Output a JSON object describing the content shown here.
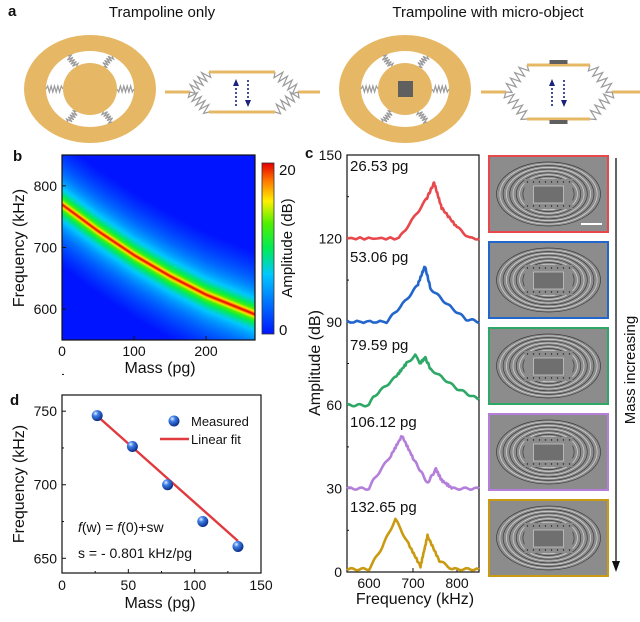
{
  "panel_labels": {
    "a": "a",
    "b": "b",
    "c": "c",
    "d": "d"
  },
  "panel_a": {
    "title_left": "Trampoline only",
    "title_right": "Trampoline with micro-object",
    "colors": {
      "frame": "#E6B865",
      "spring": "#9a9a9a",
      "object": "#5f5f5f",
      "arrow": "#1a237e"
    }
  },
  "chart_data": [
    {
      "panel": "b",
      "type": "heatmap",
      "xlabel": "Mass (pg)",
      "ylabel": "Frequency (kHz)",
      "xlim": [
        0,
        268
      ],
      "ylim": [
        550,
        850
      ],
      "xticks": [
        "0",
        "100",
        "200"
      ],
      "yticks": [
        "600",
        "700",
        "800"
      ],
      "colorbar": {
        "label": "Amplitude (dB)",
        "range": [
          0,
          20
        ],
        "ticks": [
          "0",
          "20"
        ],
        "colormap": "jet"
      },
      "ridge": {
        "mass": [
          0,
          50,
          100,
          150,
          200,
          268
        ],
        "frequency": [
          770,
          727,
          688,
          654,
          624,
          592
        ]
      }
    },
    {
      "panel": "c",
      "type": "line",
      "xlabel": "Frequency (kHz)",
      "ylabel": "Amplitude (dB)",
      "xlim": [
        550,
        850
      ],
      "ylim": [
        0,
        150
      ],
      "xticks": [
        "600",
        "700",
        "800"
      ],
      "yticks": [
        "0",
        "30",
        "60",
        "90",
        "120",
        "150"
      ],
      "series": [
        {
          "name": "26.53 pg",
          "color": "#E8474C",
          "x": [
            550,
            668,
            700,
            730,
            748,
            765,
            800,
            830,
            850
          ],
          "y": [
            120,
            120,
            127,
            134,
            140,
            131,
            124,
            120,
            120
          ]
        },
        {
          "name": "53.06 pg",
          "color": "#2266CC",
          "x": [
            550,
            640,
            680,
            710,
            727,
            740,
            780,
            820,
            850
          ],
          "y": [
            90,
            90,
            97,
            103,
            110,
            102,
            96,
            91,
            90
          ]
        },
        {
          "name": "79.59 pg",
          "color": "#2EA866",
          "x": [
            550,
            600,
            610,
            660,
            685,
            705,
            715,
            728,
            740,
            800,
            850
          ],
          "y": [
            60,
            60,
            63,
            70,
            75,
            78,
            75,
            77,
            73,
            66,
            62
          ]
        },
        {
          "name": "106.12 pg",
          "color": "#B47FDB",
          "x": [
            550,
            600,
            610,
            650,
            675,
            700,
            733,
            752,
            765,
            790,
            850
          ],
          "y": [
            30,
            30,
            33,
            42,
            49,
            41,
            32,
            37,
            33,
            30,
            30
          ]
        },
        {
          "name": "132.65 pg",
          "color": "#C99A12",
          "x": [
            550,
            600,
            630,
            660,
            690,
            717,
            733,
            760,
            790,
            850
          ],
          "y": [
            1,
            1,
            9,
            19,
            10,
            2,
            13,
            4,
            1,
            1
          ]
        }
      ],
      "side_label": "Mass increasing"
    },
    {
      "panel": "d",
      "type": "scatter",
      "xlabel": "Mass (pg)",
      "ylabel": "Frequency (kHz)",
      "xlim": [
        0,
        150
      ],
      "ylim": [
        640,
        761
      ],
      "xticks": [
        "0",
        "50",
        "100",
        "150"
      ],
      "yticks": [
        "650",
        "700",
        "750"
      ],
      "series": [
        {
          "name": "Measured",
          "color": "#2a6fe0",
          "x": [
            26.53,
            53.06,
            79.59,
            106.12,
            132.65
          ],
          "y": [
            747,
            726,
            700,
            675,
            658
          ]
        },
        {
          "name": "Linear fit",
          "color": "#E0393E",
          "slope": -0.801,
          "intercept": 768,
          "x_range": [
            26.53,
            132.65
          ]
        }
      ],
      "annotations": {
        "formula_f1": "f",
        "formula_mid": "(w) = ",
        "formula_f2": "f",
        "formula_end": "(0)+sw",
        "slope": "s = - 0.801 kHz/pg"
      }
    }
  ]
}
